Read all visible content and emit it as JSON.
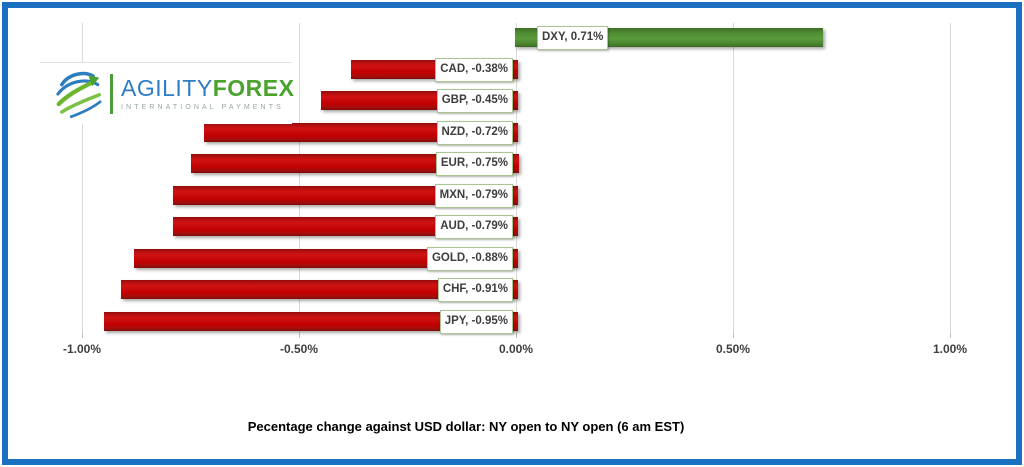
{
  "frame": {
    "border_color": "#1b70c1",
    "background": "#ffffff"
  },
  "logo": {
    "brand_part1": "AGILITY",
    "brand_part2": "FOREX",
    "tagline": "INTERNATIONAL PAYMENTS",
    "brand_part1_color": "#2d7ec6",
    "brand_part2_color": "#4aa32e",
    "globe_blue": "#2d7dc1",
    "globe_green": "#6cb52f"
  },
  "chart_data": {
    "type": "bar",
    "orientation": "horizontal",
    "title": "Pecentage change against USD dollar: NY open to NY open  (6 am EST)",
    "categories": [
      "DXY",
      "CAD",
      "GBP",
      "NZD",
      "EUR",
      "MXN",
      "AUD",
      "GOLD",
      "CHF",
      "JPY"
    ],
    "values": [
      0.71,
      -0.38,
      -0.45,
      -0.72,
      -0.75,
      -0.79,
      -0.79,
      -0.88,
      -0.91,
      -0.95
    ],
    "data_labels": [
      "DXY, 0.71%",
      "CAD, -0.38%",
      "GBP, -0.45%",
      "NZD, -0.72%",
      "EUR, -0.75%",
      "MXN, -0.79%",
      "AUD, -0.79%",
      "GOLD, -0.88%",
      "CHF, -0.91%",
      "JPY, -0.95%"
    ],
    "x_ticks": [
      "-1.00%",
      "-0.50%",
      "0.00%",
      "0.50%",
      "1.00%"
    ],
    "x_tick_values": [
      -1,
      -0.5,
      0,
      0.5,
      1
    ],
    "xlim": [
      -1,
      1
    ],
    "grid": true,
    "legend": false,
    "positive_color": "#4f8a33",
    "negative_color": "#c00000",
    "label_box_border": "#a9c592",
    "gridline_color": "#d9d9d9",
    "tick_label_color": "#3f3f3f"
  }
}
